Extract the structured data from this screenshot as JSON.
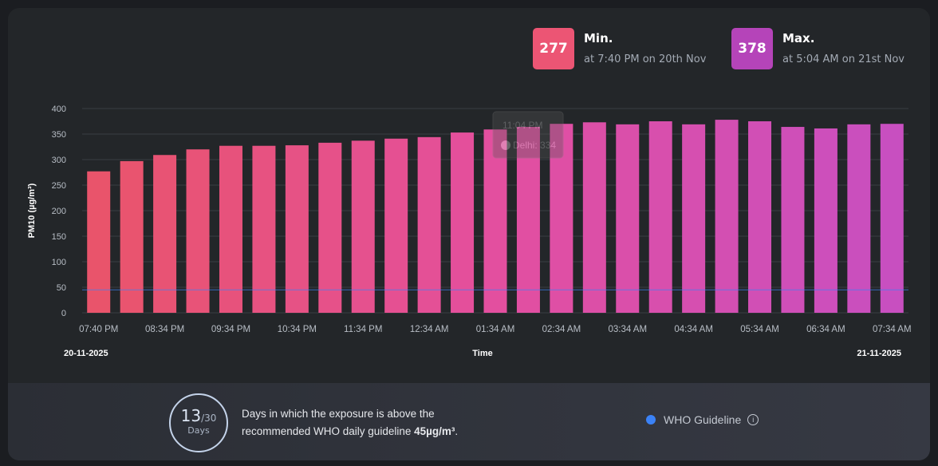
{
  "summary": {
    "min": {
      "value": "277",
      "label": "Min.",
      "sub": "at 7:40 PM on 20th Nov",
      "color": "#ec5574"
    },
    "max": {
      "value": "378",
      "label": "Max.",
      "sub": "at 5:04 AM on 21st Nov",
      "color": "#b544b9"
    }
  },
  "tooltip": {
    "time": "11:04 PM",
    "text": "Delhi: 334"
  },
  "chart_data": {
    "type": "bar",
    "ylabel": "PM10 (µg/m³)",
    "xlabel": "Time",
    "ylim": [
      0,
      400
    ],
    "yticks": [
      0,
      50,
      100,
      150,
      200,
      250,
      300,
      350,
      400
    ],
    "grid": true,
    "xtick_labels": [
      "07:40 PM",
      "08:34 PM",
      "09:34 PM",
      "10:34 PM",
      "11:34 PM",
      "12:34 AM",
      "01:34 AM",
      "02:34 AM",
      "03:34 AM",
      "04:34 AM",
      "05:34 AM",
      "06:34 AM",
      "07:34 AM"
    ],
    "date_start": "20-11-2025",
    "date_end": "21-11-2025",
    "values": [
      277,
      297,
      309,
      320,
      327,
      327,
      328,
      333,
      337,
      341,
      344,
      353,
      359,
      364,
      370,
      373,
      369,
      375,
      369,
      378,
      375,
      364,
      361,
      369,
      370
    ],
    "guideline": {
      "name": "WHO Guideline",
      "value": 45,
      "color": "#3b82f6"
    },
    "color_start": "#e9546b",
    "color_end": "#c84fc0"
  },
  "bottom": {
    "days": "13",
    "total": "/30",
    "days_label": "Days",
    "desc_line1": "Days in which the exposure is above the",
    "desc_line2": "recommended WHO daily guideline ",
    "desc_bold": "45µg/m³",
    "desc_end": ".",
    "legend": "WHO Guideline",
    "info_icon": "i"
  }
}
